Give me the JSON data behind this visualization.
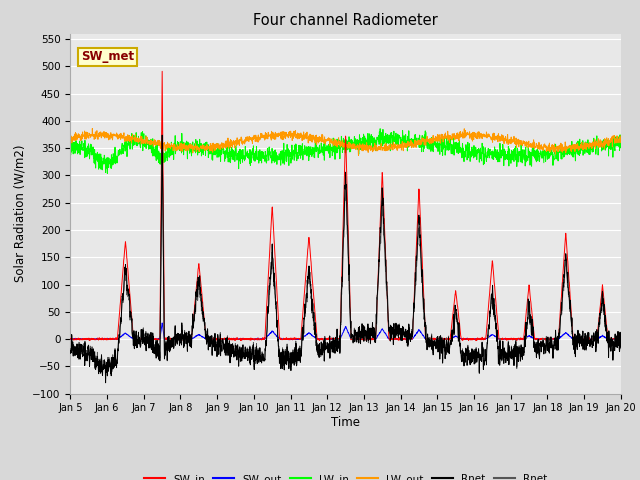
{
  "title": "Four channel Radiometer",
  "xlabel": "Time",
  "ylabel": "Solar Radiation (W/m2)",
  "ylim": [
    -100,
    560
  ],
  "yticks": [
    -100,
    -50,
    0,
    50,
    100,
    150,
    200,
    250,
    300,
    350,
    400,
    450,
    500,
    550
  ],
  "date_labels": [
    "Jan 5",
    "Jan 6",
    "Jan 7",
    "Jan 8",
    "Jan 9",
    "Jan 10",
    "Jan 11",
    "Jan 12",
    "Jan 13",
    "Jan 14",
    "Jan 15",
    "Jan 16",
    "Jan 17",
    "Jan 18",
    "Jan 19",
    "Jan 20"
  ],
  "annotation_text": "SW_met",
  "annotation_bg": "#ffffcc",
  "annotation_border": "#ccaa00",
  "annotation_text_color": "#880000",
  "colors": {
    "SW_in": "#ff0000",
    "SW_out": "#0000ff",
    "LW_in": "#00ff00",
    "LW_out": "#ff9900",
    "Rnet_black": "#000000",
    "Rnet_dark": "#555555"
  },
  "bg_color": "#e8e8e8",
  "grid_color": "#ffffff",
  "figsize": [
    6.4,
    4.8
  ],
  "dpi": 100
}
